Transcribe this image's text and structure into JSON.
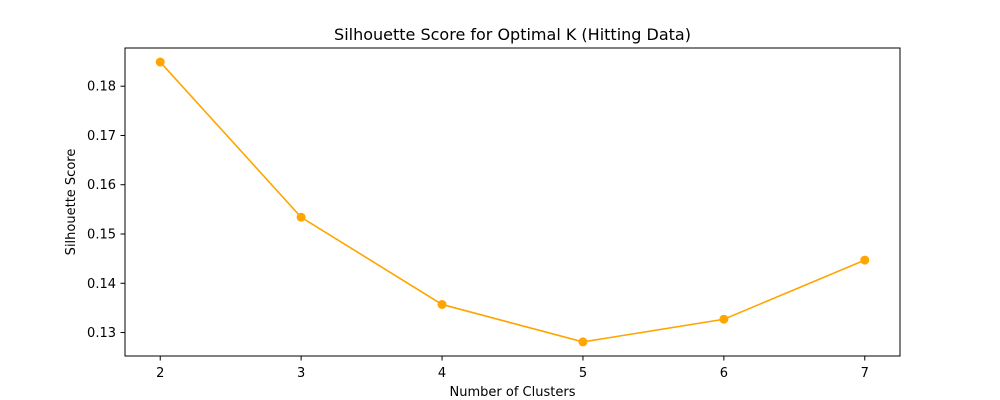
{
  "chart_data": {
    "type": "line",
    "title": "Silhouette Score for Optimal K (Hitting Data)",
    "xlabel": "Number of Clusters",
    "ylabel": "Silhouette Score",
    "x": [
      2,
      3,
      4,
      5,
      6,
      7
    ],
    "series": [
      {
        "values": [
          0.1849,
          0.1534,
          0.1357,
          0.1281,
          0.1327,
          0.1447
        ]
      }
    ],
    "xticks": [
      2,
      3,
      4,
      5,
      6,
      7
    ],
    "yticks": [
      0.13,
      0.14,
      0.15,
      0.16,
      0.17,
      0.18
    ],
    "ytick_labels": [
      "0.13",
      "0.14",
      "0.15",
      "0.16",
      "0.17",
      "0.18"
    ],
    "xlim": [
      1.75,
      7.25
    ],
    "ylim": [
      0.12524,
      0.18775
    ],
    "grid": false,
    "line_color": "#FFA500",
    "marker": "circle"
  }
}
